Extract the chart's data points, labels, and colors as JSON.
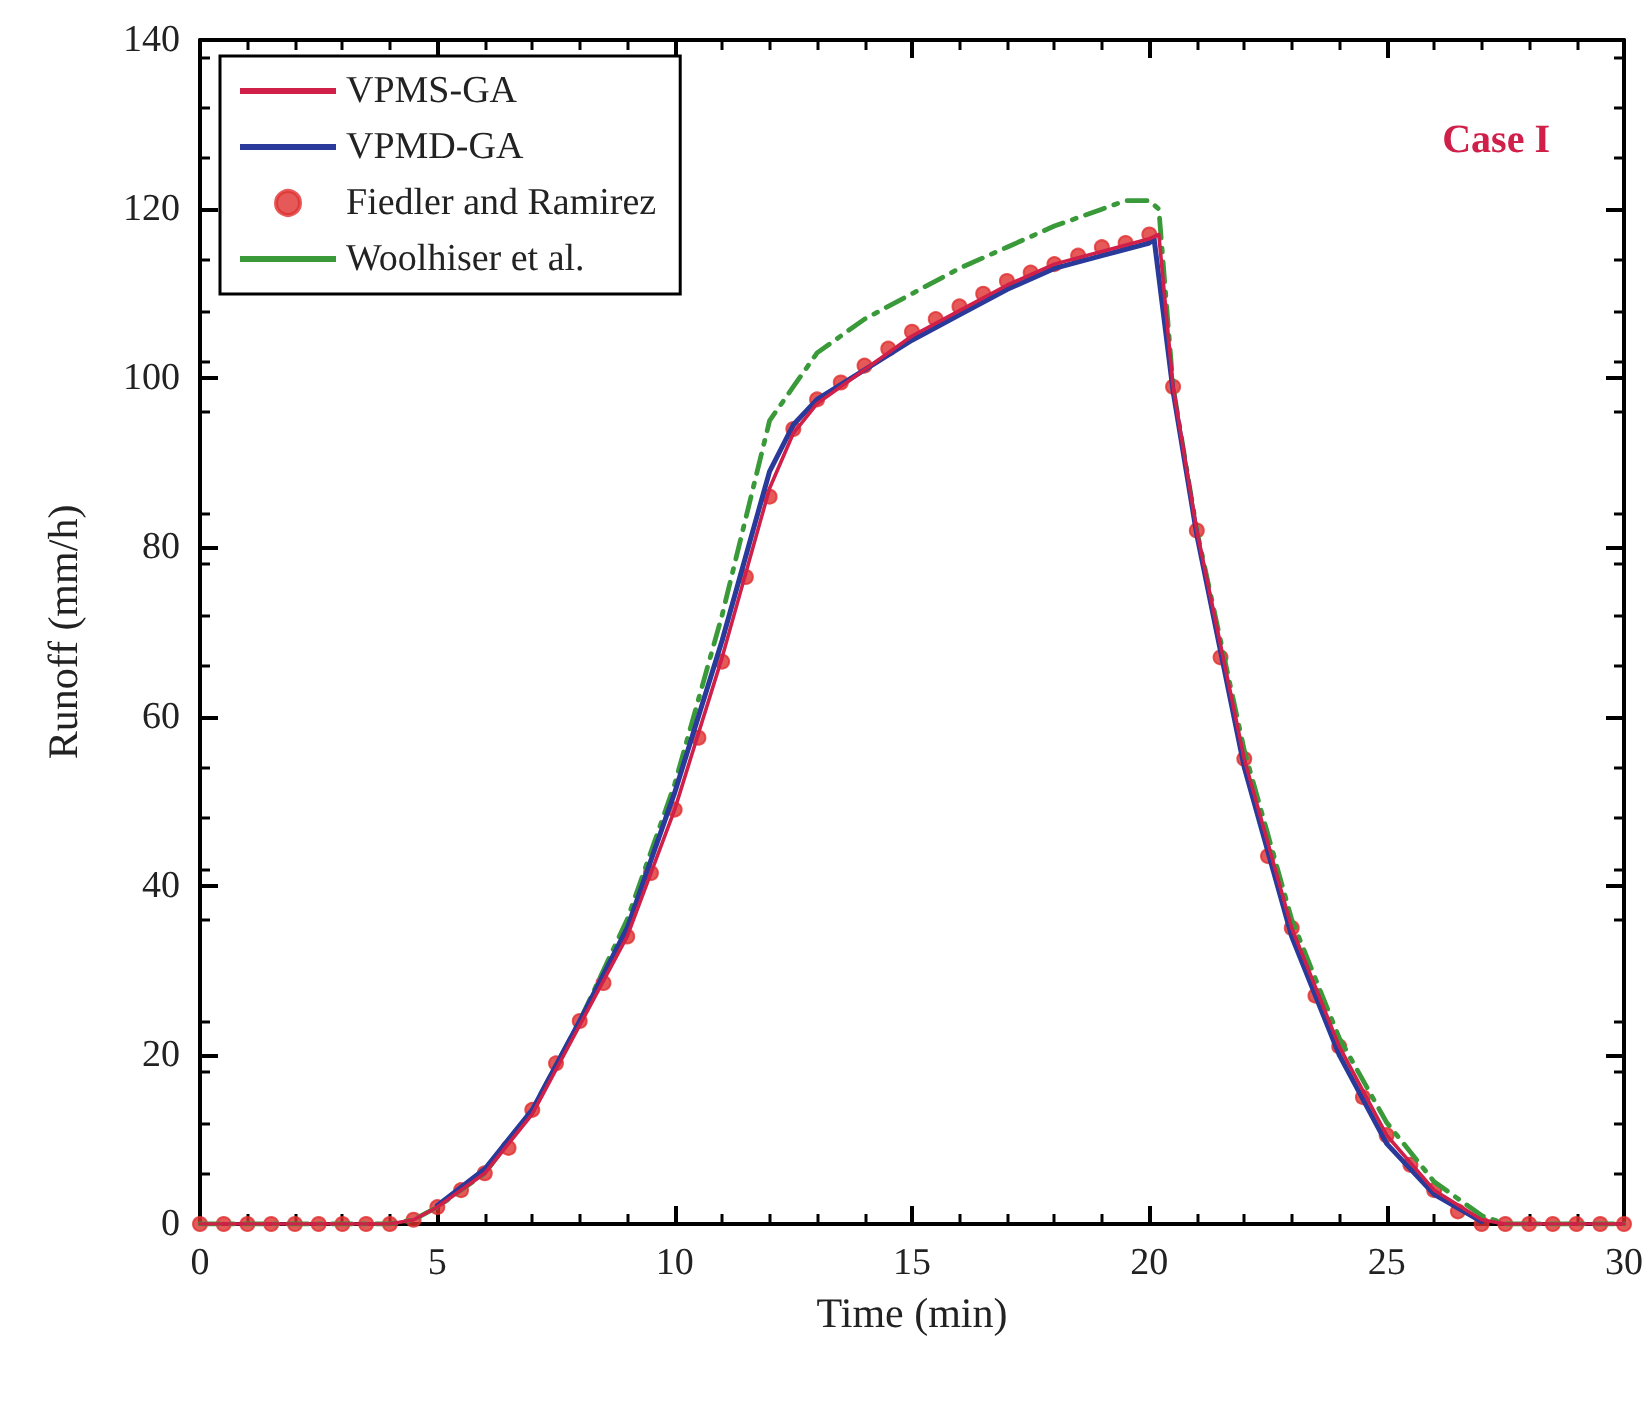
{
  "chart_data": {
    "type": "line",
    "xlabel": "Time (min)",
    "ylabel": "Runoff (mm/h)",
    "annotations": [
      "Case I"
    ],
    "xlim": [
      0,
      30
    ],
    "xticks": [
      0,
      5,
      10,
      15,
      20,
      25,
      30
    ],
    "ylim": [
      0,
      140
    ],
    "yticks": [
      0,
      20,
      40,
      60,
      80,
      100,
      120,
      140
    ],
    "grid": false,
    "legend": "top left",
    "series": [
      {
        "name": "VPMS-GA",
        "color": "#d0204a",
        "marker": "none",
        "line_style": "solid",
        "x": [
          0,
          4,
          4.5,
          5,
          6,
          7,
          8,
          9,
          10,
          11,
          12,
          12.5,
          13,
          14,
          15,
          16,
          17,
          18,
          19,
          20,
          20.2,
          20.5,
          21,
          22,
          23,
          24,
          25,
          26,
          27,
          27.5,
          30
        ],
        "values": [
          0,
          0,
          0.5,
          2,
          6,
          13,
          23.5,
          34,
          49,
          67,
          87,
          93.5,
          97,
          101,
          105,
          108,
          111,
          113.5,
          115,
          116.5,
          117,
          99,
          82,
          55,
          35,
          21,
          10.5,
          4,
          0.5,
          0,
          0
        ]
      },
      {
        "name": "VPMD-GA",
        "color": "#2a3a9a",
        "marker": "none",
        "line_style": "solid",
        "x": [
          5,
          6,
          7,
          8,
          9,
          10,
          11,
          12,
          12.5,
          13,
          14,
          15,
          16,
          17,
          18,
          19,
          20,
          20.1,
          20.5,
          21,
          22,
          23,
          24,
          25,
          26,
          27
        ],
        "values": [
          2.2,
          6.5,
          13.5,
          24,
          35,
          51,
          69,
          89,
          94.5,
          97.5,
          101,
          104.5,
          107.5,
          110.5,
          113,
          114.5,
          116,
          116.5,
          98.5,
          81.5,
          54,
          34,
          20,
          9.5,
          3.5,
          0.3
        ]
      },
      {
        "name": "Fiedler and Ramirez",
        "type": "scatter",
        "color": "#e03030",
        "marker": "circle",
        "x": [
          0,
          0.5,
          1,
          1.5,
          2,
          2.5,
          3,
          3.5,
          4,
          4.5,
          5,
          5.5,
          6,
          6.5,
          7,
          7.5,
          8,
          8.5,
          9,
          9.5,
          10,
          10.5,
          11,
          11.5,
          12,
          12.5,
          13,
          13.5,
          14,
          14.5,
          15,
          15.5,
          16,
          16.5,
          17,
          17.5,
          18,
          18.5,
          19,
          19.5,
          20,
          20.5,
          21,
          21.5,
          22,
          22.5,
          23,
          23.5,
          24,
          24.5,
          25,
          25.5,
          26,
          26.5,
          27,
          27.5,
          28,
          28.5,
          29,
          29.5,
          30
        ],
        "values": [
          0,
          0,
          0,
          0,
          0,
          0,
          0,
          0,
          0,
          0.5,
          2,
          4,
          6,
          9,
          13.5,
          19,
          24,
          28.5,
          34,
          41.5,
          49,
          57.5,
          66.5,
          76.5,
          86,
          94,
          97.5,
          99.5,
          101.5,
          103.5,
          105.5,
          107,
          108.5,
          110,
          111.5,
          112.5,
          113.5,
          114.5,
          115.5,
          116,
          117,
          99,
          82,
          67,
          55,
          43.5,
          35,
          27,
          21,
          15,
          10.5,
          7,
          4,
          1.5,
          0,
          0,
          0,
          0,
          0,
          0,
          0
        ]
      },
      {
        "name": "Woolhiser et al.",
        "color": "#3a9a3a",
        "marker": "none",
        "line_style": "dashed",
        "x": [
          0,
          4,
          4.5,
          5,
          6,
          7,
          8,
          9,
          10,
          11,
          12,
          12.5,
          13,
          14,
          15,
          16,
          17,
          18,
          19,
          19.5,
          20,
          20.2,
          20.5,
          21,
          22,
          23,
          24,
          25,
          26,
          27,
          27.5,
          30
        ],
        "values": [
          0,
          0,
          0.5,
          2,
          6,
          13.5,
          24,
          36,
          52,
          72,
          95,
          99,
          103,
          107,
          110,
          113,
          115.5,
          118,
          120,
          121,
          121,
          120,
          99,
          82,
          56,
          36,
          22,
          12,
          5,
          1,
          0,
          0
        ]
      }
    ]
  }
}
